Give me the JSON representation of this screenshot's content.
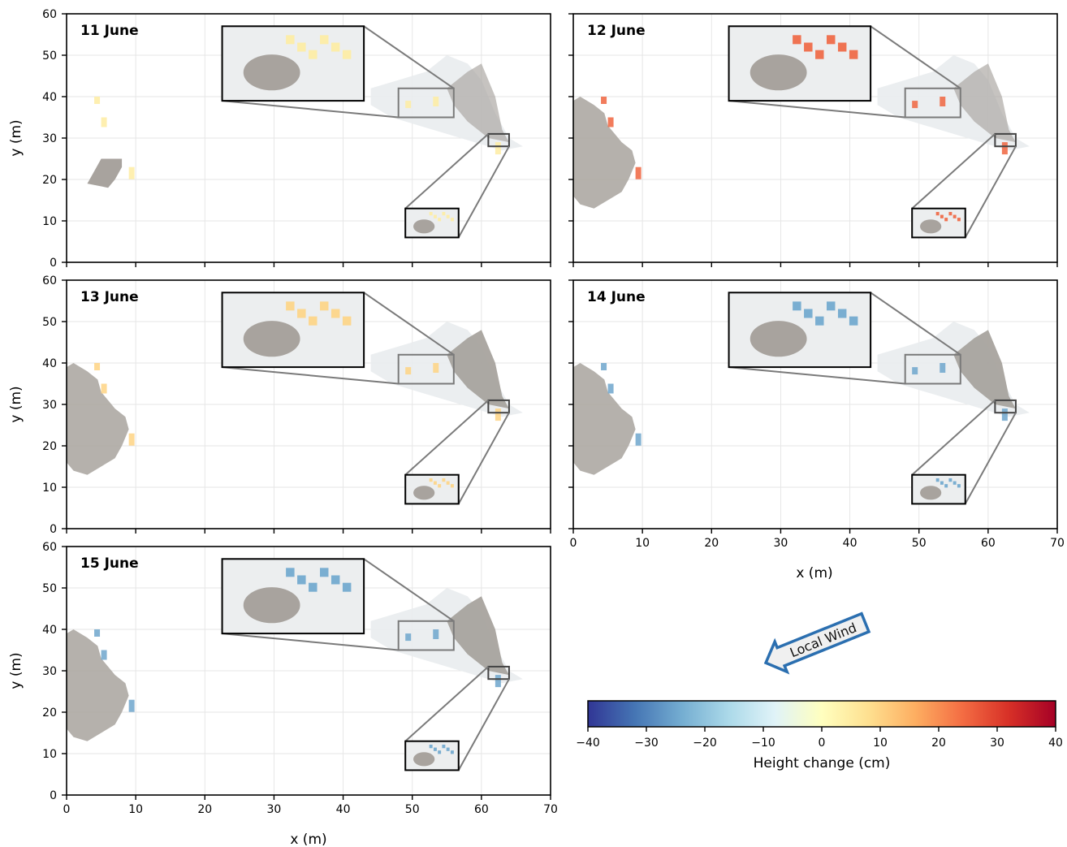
{
  "chart_data": {
    "type": "heatmap",
    "xlim": [
      0,
      70
    ],
    "ylim": [
      0,
      60
    ],
    "xticks": [
      0,
      10,
      20,
      30,
      40,
      50,
      60,
      70
    ],
    "yticks": [
      0,
      10,
      20,
      30,
      40,
      50,
      60
    ],
    "xlabel": "x (m)",
    "ylabel": "y (m)",
    "grid": true,
    "panels": [
      {
        "label": "11 June",
        "dominant_change_cm": 5
      },
      {
        "label": "12 June",
        "dominant_change_cm": 25
      },
      {
        "label": "13 June",
        "dominant_change_cm": 10
      },
      {
        "label": "14 June",
        "dominant_change_cm": -25
      },
      {
        "label": "15 June",
        "dominant_change_cm": -25
      }
    ],
    "zoom_regions": [
      {
        "x": [
          48,
          56
        ],
        "y": [
          35,
          42
        ]
      },
      {
        "x": [
          61,
          64
        ],
        "y": [
          28,
          31
        ]
      }
    ],
    "colorbar": {
      "label": "Height change (cm)",
      "range": [
        -40,
        40
      ],
      "ticks": [
        -40,
        -30,
        -20,
        -10,
        0,
        10,
        20,
        30,
        40
      ],
      "tick_labels": [
        "−40",
        "−30",
        "−20",
        "−10",
        "0",
        "10",
        "20",
        "30",
        "40"
      ],
      "colormap": [
        "#313695",
        "#4575b4",
        "#74add1",
        "#abd9e9",
        "#e0f3f8",
        "#ffffbf",
        "#fee090",
        "#fdae61",
        "#f46d43",
        "#d73027",
        "#a50026"
      ]
    },
    "annotation": {
      "text": "Local Wind",
      "direction": "arrow-left-up",
      "color": "#2b6fb0"
    }
  }
}
